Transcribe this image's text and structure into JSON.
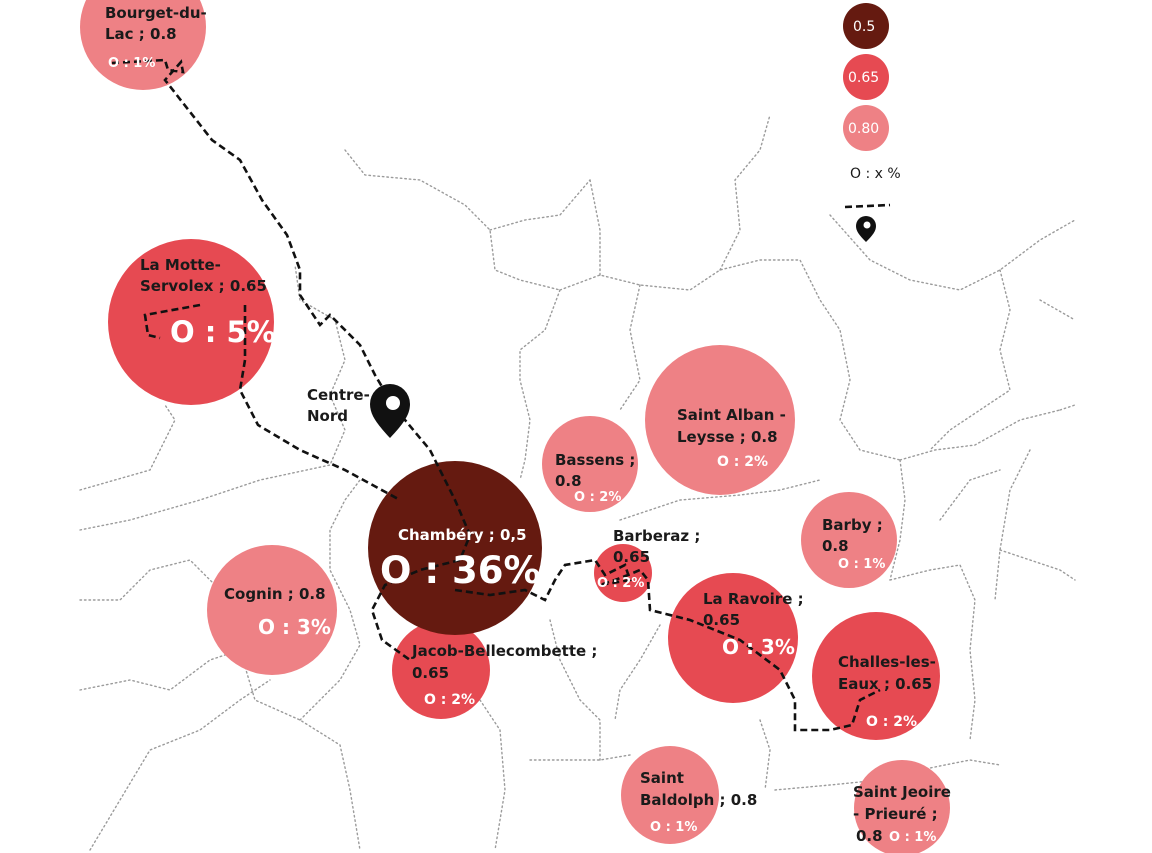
{
  "colors": {
    "0.5": "#651a10",
    "0.65": "#e64a52",
    "0.8": "#ee8185"
  },
  "legend": {
    "items": [
      {
        "label": "0.5",
        "color": "#651a10"
      },
      {
        "label": "0.65",
        "color": "#e64a52"
      },
      {
        "label": "0.80",
        "color": "#ee8185"
      }
    ],
    "occupancy_key": "O : x %"
  },
  "marker": {
    "label_lines": [
      "Centre-",
      "Nord"
    ]
  },
  "communes": [
    {
      "id": "bourget-du-lac",
      "name_lines": [
        "Bourget-du-",
        "Lac ; 0.8"
      ],
      "coef": 0.8,
      "occupancy": "O : 1%"
    },
    {
      "id": "la-motte-servolex",
      "name_lines": [
        "La Motte-",
        "Servolex ; 0.65"
      ],
      "coef": 0.65,
      "occupancy": "O : 5%"
    },
    {
      "id": "chambery",
      "name_lines": [
        "Chambéry ; 0,5"
      ],
      "coef": 0.5,
      "occupancy": "O : 36%"
    },
    {
      "id": "cognin",
      "name_lines": [
        "Cognin ; 0.8"
      ],
      "coef": 0.8,
      "occupancy": "O : 3%"
    },
    {
      "id": "jacob-bellecombette",
      "name_lines": [
        "Jacob-Bellecombette ;",
        "0.65"
      ],
      "coef": 0.65,
      "occupancy": "O : 2%"
    },
    {
      "id": "bassens",
      "name_lines": [
        "Bassens ;",
        "0.8"
      ],
      "coef": 0.8,
      "occupancy": "O : 2%"
    },
    {
      "id": "saint-alban-leysse",
      "name_lines": [
        "Saint Alban -",
        "Leysse ; 0.8"
      ],
      "coef": 0.8,
      "occupancy": "O : 2%"
    },
    {
      "id": "barberaz",
      "name_lines": [
        "Barberaz ;",
        "0.65"
      ],
      "coef": 0.65,
      "occupancy": "O : 2%"
    },
    {
      "id": "barby",
      "name_lines": [
        "Barby ;",
        "0.8"
      ],
      "coef": 0.8,
      "occupancy": "O : 1%"
    },
    {
      "id": "la-ravoire",
      "name_lines": [
        "La Ravoire ;",
        "0.65"
      ],
      "coef": 0.65,
      "occupancy": "O : 3%"
    },
    {
      "id": "challes-les-eaux",
      "name_lines": [
        "Challes-les-",
        "Eaux ; 0.65"
      ],
      "coef": 0.65,
      "occupancy": "O : 2%"
    },
    {
      "id": "saint-baldolph",
      "name_lines": [
        "Saint",
        "Baldolph ; 0.8"
      ],
      "coef": 0.8,
      "occupancy": "O : 1%"
    },
    {
      "id": "saint-jeoire-prieure",
      "name_lines": [
        "Saint Jeoire",
        "- Prieuré ;",
        "0.8"
      ],
      "coef": 0.8,
      "occupancy": "O : 1%"
    }
  ]
}
